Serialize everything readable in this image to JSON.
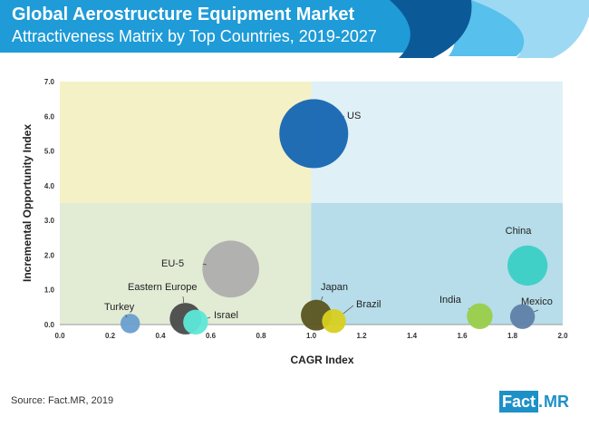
{
  "header": {
    "title": "Global Aerostructure Equipment Market",
    "subtitle": "Attractiveness Matrix by Top Countries, 2019-2027"
  },
  "chart_data": {
    "type": "scatter",
    "subtype": "bubble",
    "title": "Global Aerostructure Equipment Market",
    "subtitle": "Attractiveness Matrix by Top Countries, 2019-2027",
    "xlabel": "CAGR Index",
    "ylabel": "Incremental Opportunity Index",
    "xlim": [
      0.0,
      2.0
    ],
    "ylim": [
      0.0,
      7.0
    ],
    "x_ticks": [
      "0.0",
      "0.2",
      "0.4",
      "0.6",
      "0.8",
      "1.0",
      "1.2",
      "1.4",
      "1.6",
      "1.8",
      "2.0"
    ],
    "y_ticks": [
      "0.0",
      "1.0",
      "2.0",
      "3.0",
      "4.0",
      "5.0",
      "6.0",
      "7.0"
    ],
    "grid": false,
    "legend": "none",
    "quadrants": {
      "x_split": 1.0,
      "y_split": 3.5,
      "colors": {
        "top_left": "#f5f1c6",
        "top_right": "#dff0f6",
        "bottom_left": "#e2ecd5",
        "bottom_right": "#b6dde9"
      }
    },
    "points": [
      {
        "label": "US",
        "x": 1.01,
        "y": 5.5,
        "size": 100,
        "color": "#1565b2"
      },
      {
        "label": "China",
        "x": 1.86,
        "y": 1.7,
        "size": 34,
        "color": "#3bcfc6"
      },
      {
        "label": "EU-5",
        "x": 0.68,
        "y": 1.6,
        "size": 68,
        "color": "#aeaeae"
      },
      {
        "label": "Eastern Europe",
        "x": 0.5,
        "y": 0.17,
        "size": 21,
        "color": "#4a4a4a"
      },
      {
        "label": "Israel",
        "x": 0.54,
        "y": 0.07,
        "size": 13,
        "color": "#5de8d8"
      },
      {
        "label": "Japan",
        "x": 1.02,
        "y": 0.27,
        "size": 20,
        "color": "#5b5420"
      },
      {
        "label": "Brazil",
        "x": 1.09,
        "y": 0.1,
        "size": 12,
        "color": "#d8cf20"
      },
      {
        "label": "India",
        "x": 1.67,
        "y": 0.24,
        "size": 14,
        "color": "#9acd4a"
      },
      {
        "label": "Mexico",
        "x": 1.84,
        "y": 0.23,
        "size": 13,
        "color": "#5f7fa8"
      },
      {
        "label": "Turkey",
        "x": 0.28,
        "y": 0.03,
        "size": 8,
        "color": "#6a9fcf"
      }
    ]
  },
  "footer": {
    "source": "Source: Fact.MR, 2019",
    "logo_left": "Fact",
    "logo_dot": ".",
    "logo_right": "MR"
  },
  "colors": {
    "banner": "#1f9bd7",
    "banner_dark": "#0b5a97",
    "banner_light": "#8fd4f1",
    "logo": "#1e90c8"
  }
}
